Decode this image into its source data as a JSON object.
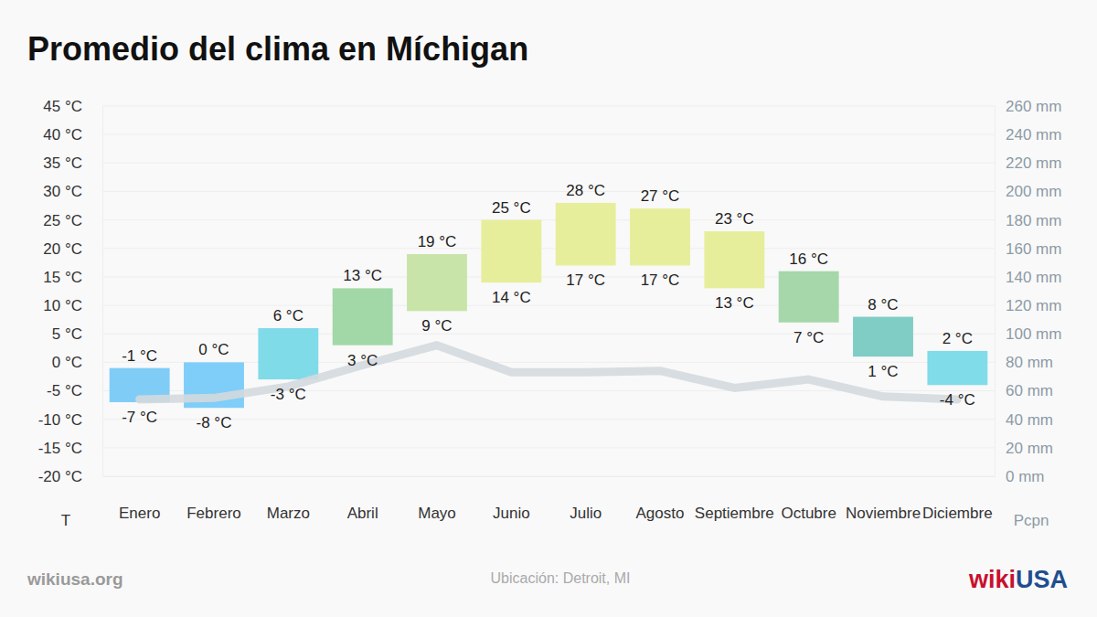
{
  "chart_data": {
    "type": "bar",
    "title": "Promedio del clima en Míchigan",
    "ylabel": "T",
    "y2label": "Pcpn",
    "annotations": [
      "wikiusa.org",
      "Ubicación: Detroit, MI",
      "wiki",
      "USA"
    ],
    "categories": [
      "Enero",
      "Febrero",
      "Marzo",
      "Abril",
      "Mayo",
      "Junio",
      "Julio",
      "Agosto",
      "Septiembre",
      "Octubre",
      "Noviembre",
      "Diciembre"
    ],
    "ylim": [
      -20,
      45
    ],
    "yticks": [
      {
        "value": -20,
        "label": "-20 °C"
      },
      {
        "value": -15,
        "label": "-15 °C"
      },
      {
        "value": -10,
        "label": "-10 °C"
      },
      {
        "value": -5,
        "label": "-5 °C"
      },
      {
        "value": 0,
        "label": "0 °C"
      },
      {
        "value": 5,
        "label": "5 °C"
      },
      {
        "value": 10,
        "label": "10 °C"
      },
      {
        "value": 15,
        "label": "15 °C"
      },
      {
        "value": 20,
        "label": "20 °C"
      },
      {
        "value": 25,
        "label": "25 °C"
      },
      {
        "value": 30,
        "label": "30 °C"
      },
      {
        "value": 35,
        "label": "35 °C"
      },
      {
        "value": 40,
        "label": "40 °C"
      },
      {
        "value": 45,
        "label": "45 °C"
      }
    ],
    "y2lim": [
      0,
      260
    ],
    "y2ticks": [
      {
        "value": 0,
        "label": "0 mm"
      },
      {
        "value": 20,
        "label": "20 mm"
      },
      {
        "value": 40,
        "label": "40 mm"
      },
      {
        "value": 60,
        "label": "60 mm"
      },
      {
        "value": 80,
        "label": "80 mm"
      },
      {
        "value": 100,
        "label": "100 mm"
      },
      {
        "value": 120,
        "label": "120 mm"
      },
      {
        "value": 140,
        "label": "140 mm"
      },
      {
        "value": 160,
        "label": "160 mm"
      },
      {
        "value": 180,
        "label": "180 mm"
      },
      {
        "value": 200,
        "label": "200 mm"
      },
      {
        "value": 220,
        "label": "220 mm"
      },
      {
        "value": 240,
        "label": "240 mm"
      },
      {
        "value": 260,
        "label": "260 mm"
      }
    ],
    "grid": true,
    "data_labels": true,
    "series": [
      {
        "type": "bar",
        "values": [
          -1,
          0,
          6,
          13,
          19,
          25,
          28,
          27,
          23,
          16,
          8,
          2
        ],
        "value_labels": [
          "-1 °C",
          "0 °C",
          "6 °C",
          "13 °C",
          "19 °C",
          "25 °C",
          "28 °C",
          "27 °C",
          "23 °C",
          "16 °C",
          "8 °C",
          "2 °C"
        ],
        "low": [
          -7,
          -8,
          -3,
          3,
          9,
          14,
          17,
          17,
          13,
          7,
          1,
          -4
        ],
        "low_labels": [
          "-7 °C",
          "-8 °C",
          "-3 °C",
          "3 °C",
          "9 °C",
          "14 °C",
          "17 °C",
          "17 °C",
          "13 °C",
          "7 °C",
          "1 °C",
          "-4 °C"
        ],
        "colors": [
          "#7fcdf7",
          "#7fcdf9",
          "#80dbe9",
          "#a2d8a7",
          "#c8e4a8",
          "#e6ee9c",
          "#e6ee9c",
          "#e6ee9c",
          "#e6ee9c",
          "#a5d7aa",
          "#80cdc6",
          "#80dce8"
        ]
      },
      {
        "type": "line",
        "axis": "y2",
        "color": "#d3d9dd",
        "values": [
          54,
          55,
          63,
          78,
          92,
          73,
          73,
          74,
          62,
          68,
          56,
          54
        ]
      }
    ]
  }
}
